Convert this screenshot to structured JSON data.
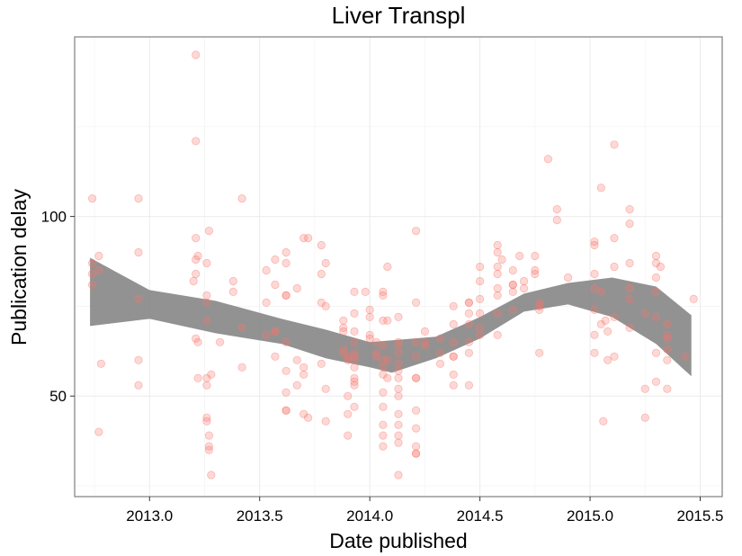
{
  "chart_data": {
    "type": "scatter",
    "title": "Liver Transpl",
    "xlabel": "Date published",
    "ylabel": "Publication delay",
    "xlim": [
      2012.66,
      2015.6
    ],
    "ylim": [
      22,
      150
    ],
    "x_ticks": [
      2013.0,
      2013.5,
      2014.0,
      2014.5,
      2015.0,
      2015.5
    ],
    "x_tick_labels": [
      "2013.0",
      "2013.5",
      "2014.0",
      "2014.5",
      "2015.0",
      "2015.5"
    ],
    "y_ticks": [
      50,
      100
    ],
    "y_tick_labels": [
      "50",
      "100"
    ],
    "grid": true,
    "point_color": "#f8766d",
    "ribbon_color": "#7f7f7f",
    "points": [
      [
        2012.74,
        105
      ],
      [
        2012.74,
        87
      ],
      [
        2012.74,
        84
      ],
      [
        2012.74,
        81
      ],
      [
        2012.77,
        89
      ],
      [
        2012.77,
        85
      ],
      [
        2012.78,
        59
      ],
      [
        2012.77,
        40
      ],
      [
        2012.95,
        105
      ],
      [
        2012.95,
        90
      ],
      [
        2012.95,
        77
      ],
      [
        2012.95,
        60
      ],
      [
        2012.95,
        53
      ],
      [
        2013.21,
        145
      ],
      [
        2013.21,
        121
      ],
      [
        2013.21,
        94
      ],
      [
        2013.21,
        88
      ],
      [
        2013.22,
        89
      ],
      [
        2013.21,
        84
      ],
      [
        2013.2,
        82
      ],
      [
        2013.21,
        66
      ],
      [
        2013.22,
        65
      ],
      [
        2013.22,
        55
      ],
      [
        2013.27,
        96
      ],
      [
        2013.26,
        87
      ],
      [
        2013.26,
        78
      ],
      [
        2013.26,
        76
      ],
      [
        2013.26,
        71
      ],
      [
        2013.26,
        55
      ],
      [
        2013.26,
        53
      ],
      [
        2013.26,
        44
      ],
      [
        2013.26,
        43
      ],
      [
        2013.27,
        39
      ],
      [
        2013.27,
        36
      ],
      [
        2013.27,
        35
      ],
      [
        2013.28,
        56
      ],
      [
        2013.28,
        28
      ],
      [
        2013.32,
        65
      ],
      [
        2013.38,
        82
      ],
      [
        2013.38,
        79
      ],
      [
        2013.42,
        105
      ],
      [
        2013.42,
        69
      ],
      [
        2013.42,
        58
      ],
      [
        2013.53,
        85
      ],
      [
        2013.53,
        76
      ],
      [
        2013.53,
        67
      ],
      [
        2013.57,
        88
      ],
      [
        2013.57,
        81
      ],
      [
        2013.57,
        68
      ],
      [
        2013.57,
        68
      ],
      [
        2013.57,
        61
      ],
      [
        2013.62,
        90
      ],
      [
        2013.62,
        87
      ],
      [
        2013.62,
        78
      ],
      [
        2013.62,
        78
      ],
      [
        2013.62,
        65
      ],
      [
        2013.62,
        57
      ],
      [
        2013.62,
        51
      ],
      [
        2013.62,
        46
      ],
      [
        2013.62,
        46
      ],
      [
        2013.67,
        80
      ],
      [
        2013.67,
        60
      ],
      [
        2013.67,
        53
      ],
      [
        2013.7,
        94
      ],
      [
        2013.72,
        94
      ],
      [
        2013.7,
        58
      ],
      [
        2013.7,
        56
      ],
      [
        2013.7,
        45
      ],
      [
        2013.72,
        44
      ],
      [
        2013.78,
        92
      ],
      [
        2013.78,
        84
      ],
      [
        2013.78,
        76
      ],
      [
        2013.78,
        59
      ],
      [
        2013.8,
        87
      ],
      [
        2013.8,
        75
      ],
      [
        2013.8,
        52
      ],
      [
        2013.8,
        43
      ],
      [
        2013.88,
        71
      ],
      [
        2013.88,
        69
      ],
      [
        2013.88,
        68
      ],
      [
        2013.88,
        63
      ],
      [
        2013.88,
        62
      ],
      [
        2013.9,
        61
      ],
      [
        2013.9,
        60
      ],
      [
        2013.9,
        50
      ],
      [
        2013.9,
        45
      ],
      [
        2013.9,
        39
      ],
      [
        2013.93,
        79
      ],
      [
        2013.93,
        73
      ],
      [
        2013.93,
        68
      ],
      [
        2013.93,
        65
      ],
      [
        2013.93,
        62
      ],
      [
        2013.93,
        61
      ],
      [
        2013.93,
        60
      ],
      [
        2013.93,
        58
      ],
      [
        2013.93,
        55
      ],
      [
        2013.93,
        54
      ],
      [
        2013.93,
        53
      ],
      [
        2013.93,
        47
      ],
      [
        2013.98,
        79
      ],
      [
        2014.0,
        74
      ],
      [
        2014.0,
        72
      ],
      [
        2014.0,
        67
      ],
      [
        2014.0,
        66
      ],
      [
        2014.03,
        65
      ],
      [
        2014.03,
        62
      ],
      [
        2014.03,
        61
      ],
      [
        2014.06,
        79
      ],
      [
        2014.06,
        78
      ],
      [
        2014.06,
        71
      ],
      [
        2014.06,
        64
      ],
      [
        2014.06,
        60
      ],
      [
        2014.06,
        58
      ],
      [
        2014.06,
        56
      ],
      [
        2014.06,
        51
      ],
      [
        2014.06,
        47
      ],
      [
        2014.06,
        42
      ],
      [
        2014.06,
        39
      ],
      [
        2014.06,
        36
      ],
      [
        2014.08,
        86
      ],
      [
        2014.08,
        71
      ],
      [
        2014.08,
        60
      ],
      [
        2014.08,
        55
      ],
      [
        2014.13,
        72
      ],
      [
        2014.13,
        65
      ],
      [
        2014.13,
        64
      ],
      [
        2014.13,
        62
      ],
      [
        2014.13,
        59
      ],
      [
        2014.13,
        57
      ],
      [
        2014.13,
        55
      ],
      [
        2014.13,
        52
      ],
      [
        2014.13,
        50
      ],
      [
        2014.13,
        45
      ],
      [
        2014.13,
        42
      ],
      [
        2014.13,
        39
      ],
      [
        2014.13,
        37
      ],
      [
        2014.13,
        28
      ],
      [
        2014.21,
        96
      ],
      [
        2014.21,
        76
      ],
      [
        2014.21,
        65
      ],
      [
        2014.21,
        61
      ],
      [
        2014.21,
        55
      ],
      [
        2014.21,
        55
      ],
      [
        2014.21,
        46
      ],
      [
        2014.21,
        41
      ],
      [
        2014.21,
        36
      ],
      [
        2014.21,
        34
      ],
      [
        2014.21,
        34
      ],
      [
        2014.25,
        68
      ],
      [
        2014.25,
        65
      ],
      [
        2014.25,
        64
      ],
      [
        2014.32,
        66
      ],
      [
        2014.32,
        62
      ],
      [
        2014.32,
        59
      ],
      [
        2014.38,
        75
      ],
      [
        2014.38,
        70
      ],
      [
        2014.38,
        65
      ],
      [
        2014.38,
        61
      ],
      [
        2014.38,
        61
      ],
      [
        2014.38,
        56
      ],
      [
        2014.38,
        53
      ],
      [
        2014.45,
        76
      ],
      [
        2014.45,
        76
      ],
      [
        2014.45,
        73
      ],
      [
        2014.45,
        70
      ],
      [
        2014.45,
        65
      ],
      [
        2014.45,
        62
      ],
      [
        2014.45,
        53
      ],
      [
        2014.5,
        86
      ],
      [
        2014.5,
        82
      ],
      [
        2014.5,
        77
      ],
      [
        2014.5,
        73
      ],
      [
        2014.5,
        69
      ],
      [
        2014.5,
        67
      ],
      [
        2014.58,
        92
      ],
      [
        2014.58,
        90
      ],
      [
        2014.58,
        86
      ],
      [
        2014.58,
        84
      ],
      [
        2014.58,
        80
      ],
      [
        2014.58,
        78
      ],
      [
        2014.58,
        73
      ],
      [
        2014.58,
        67
      ],
      [
        2014.6,
        88
      ],
      [
        2014.65,
        85
      ],
      [
        2014.65,
        81
      ],
      [
        2014.65,
        81
      ],
      [
        2014.65,
        79
      ],
      [
        2014.65,
        74
      ],
      [
        2014.68,
        89
      ],
      [
        2014.7,
        82
      ],
      [
        2014.7,
        80
      ],
      [
        2014.75,
        89
      ],
      [
        2014.75,
        85
      ],
      [
        2014.75,
        84
      ],
      [
        2014.77,
        76
      ],
      [
        2014.77,
        75
      ],
      [
        2014.77,
        74
      ],
      [
        2014.77,
        62
      ],
      [
        2014.81,
        116
      ],
      [
        2014.85,
        102
      ],
      [
        2014.85,
        99
      ],
      [
        2014.9,
        83
      ],
      [
        2015.02,
        93
      ],
      [
        2015.02,
        92
      ],
      [
        2015.02,
        84
      ],
      [
        2015.02,
        80
      ],
      [
        2015.02,
        74
      ],
      [
        2015.02,
        67
      ],
      [
        2015.02,
        62
      ],
      [
        2015.05,
        108
      ],
      [
        2015.05,
        79
      ],
      [
        2015.05,
        70
      ],
      [
        2015.06,
        43
      ],
      [
        2015.07,
        71
      ],
      [
        2015.08,
        68
      ],
      [
        2015.08,
        60
      ],
      [
        2015.11,
        120
      ],
      [
        2015.11,
        94
      ],
      [
        2015.11,
        86
      ],
      [
        2015.11,
        72
      ],
      [
        2015.11,
        61
      ],
      [
        2015.18,
        102
      ],
      [
        2015.18,
        98
      ],
      [
        2015.18,
        87
      ],
      [
        2015.18,
        80
      ],
      [
        2015.18,
        77
      ],
      [
        2015.18,
        69
      ],
      [
        2015.25,
        73
      ],
      [
        2015.25,
        52
      ],
      [
        2015.25,
        44
      ],
      [
        2015.3,
        89
      ],
      [
        2015.3,
        87
      ],
      [
        2015.3,
        83
      ],
      [
        2015.3,
        79
      ],
      [
        2015.3,
        72
      ],
      [
        2015.3,
        62
      ],
      [
        2015.3,
        54
      ],
      [
        2015.32,
        86
      ],
      [
        2015.35,
        70
      ],
      [
        2015.35,
        67
      ],
      [
        2015.35,
        66
      ],
      [
        2015.35,
        63
      ],
      [
        2015.35,
        60
      ],
      [
        2015.35,
        52
      ],
      [
        2015.43,
        61
      ],
      [
        2015.47,
        77
      ]
    ],
    "smooth": {
      "x": [
        2012.73,
        2013.0,
        2013.3,
        2013.6,
        2013.8,
        2014.0,
        2014.1,
        2014.3,
        2014.5,
        2014.7,
        2014.9,
        2015.1,
        2015.3,
        2015.46
      ],
      "fit": [
        79,
        75.5,
        72,
        68,
        64.5,
        61.5,
        61,
        63.5,
        69,
        76,
        78.5,
        77.5,
        72.5,
        64
      ],
      "lower": [
        69.5,
        71.5,
        67.5,
        64.5,
        60.5,
        58,
        56.5,
        60.5,
        66,
        73.5,
        75.5,
        72,
        64.5,
        55.5
      ],
      "upper": [
        88.5,
        79.5,
        76.5,
        71.5,
        68.5,
        65,
        65.5,
        66.5,
        72,
        78.5,
        81.5,
        83,
        80.5,
        72.5
      ]
    }
  }
}
